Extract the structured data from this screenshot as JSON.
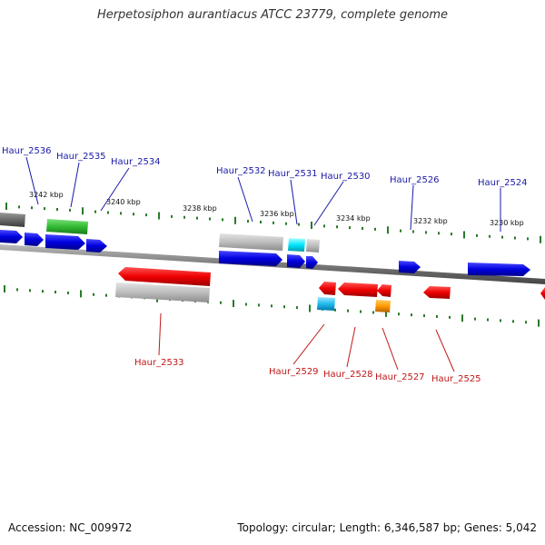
{
  "title": "Herpetosiphon aurantiacus ATCC 23779, complete genome",
  "footer": {
    "accession": "Accession: NC_009972",
    "summary": "Topology: circular; Length: 6,346,587 bp; Genes: 5,042"
  },
  "colors": {
    "forward_label": "#1a1aa8",
    "reverse_label": "#c01818",
    "tick": "#2a7a2a",
    "backbone": "#888888"
  },
  "scale_labels": [
    "3242 kbp",
    "3240 kbp",
    "3238 kbp",
    "3236 kbp",
    "3234 kbp",
    "3232 kbp",
    "3230 kbp"
  ],
  "forward_genes": [
    "Haur_2536",
    "Haur_2535",
    "Haur_2534",
    "Haur_2532",
    "Haur_2531",
    "Haur_2530",
    "Haur_2526",
    "Haur_2524"
  ],
  "reverse_genes": [
    "Haur_2533",
    "Haur_2529",
    "Haur_2528",
    "Haur_2527",
    "Haur_2525"
  ]
}
